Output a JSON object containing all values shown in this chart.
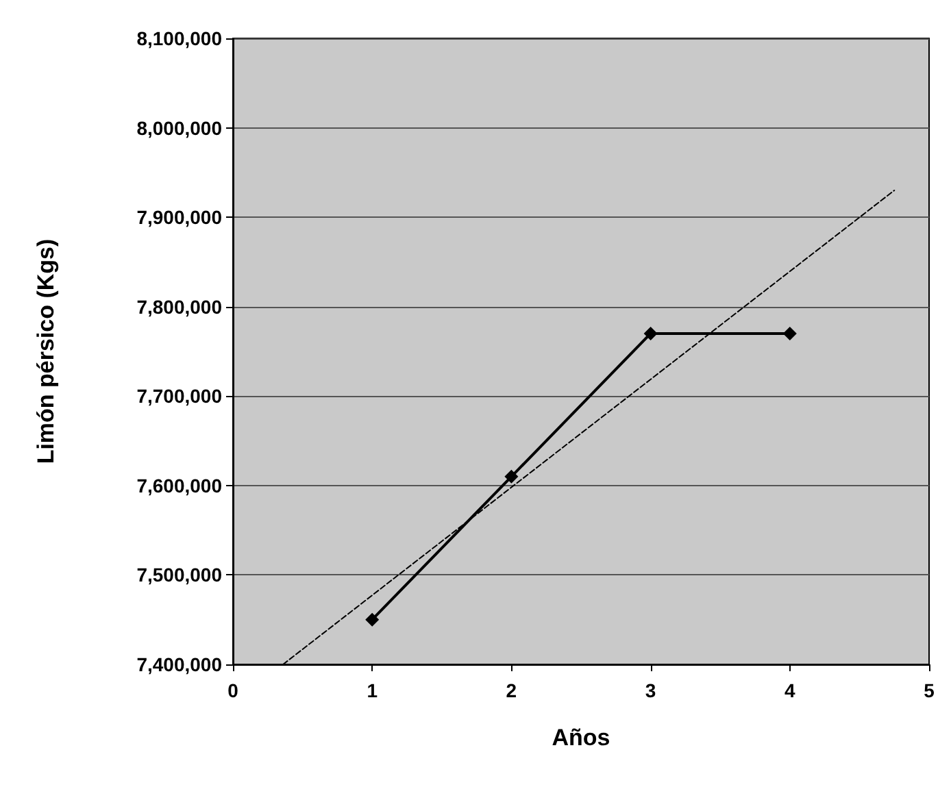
{
  "chart_data": {
    "type": "line",
    "xlabel": "Años",
    "ylabel": "Limón pérsico (Kgs)",
    "x": [
      1,
      2,
      3,
      4
    ],
    "series": [
      {
        "color": "#000000",
        "values": [
          7450000,
          7610000,
          7770000,
          7770000
        ],
        "marker": "diamond",
        "line_style": "solid"
      },
      {
        "type": "line",
        "color": "#000000",
        "x": [
          0.36,
          4.75
        ],
        "values": [
          7400000,
          7930000
        ],
        "marker": "none",
        "line_style": "dashed"
      }
    ],
    "xlim": [
      0,
      5
    ],
    "xticks": [
      0,
      1,
      2,
      3,
      4,
      5
    ],
    "ylim": [
      7400000,
      8100000
    ],
    "yticks": [
      {
        "value": 7400000,
        "label": "7,400,000"
      },
      {
        "value": 7500000,
        "label": "7,500,000"
      },
      {
        "value": 7600000,
        "label": "7,600,000"
      },
      {
        "value": 7700000,
        "label": "7,700,000"
      },
      {
        "value": 7800000,
        "label": "7,800,000"
      },
      {
        "value": 7900000,
        "label": "7,900,000"
      },
      {
        "value": 8000000,
        "label": "8,000,000"
      },
      {
        "value": 8100000,
        "label": "8,100,000"
      }
    ],
    "grid": "y"
  }
}
